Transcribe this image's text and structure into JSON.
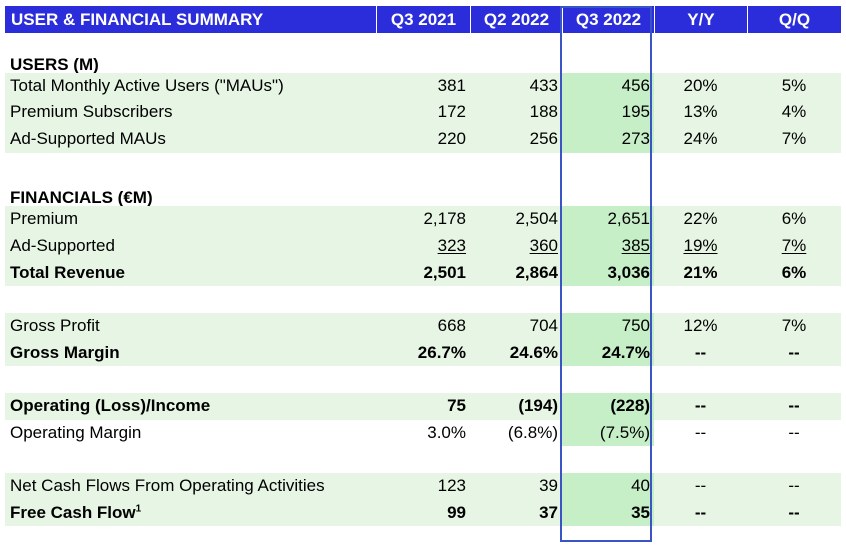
{
  "header": {
    "title": "USER & FINANCIAL SUMMARY",
    "columns": [
      "Q3 2021",
      "Q2 2022",
      "Q3 2022",
      "Y/Y",
      "Q/Q"
    ]
  },
  "sections": {
    "users_title": "USERS (M)",
    "financials_title": "FINANCIALS (€M)"
  },
  "rows": {
    "mau": {
      "label": "Total Monthly Active Users (\"MAUs\")",
      "v": [
        "381",
        "433",
        "456",
        "20%",
        "5%"
      ]
    },
    "premium_subs": {
      "label": "Premium Subscribers",
      "v": [
        "172",
        "188",
        "195",
        "13%",
        "4%"
      ]
    },
    "ad_maus": {
      "label": "Ad-Supported MAUs",
      "v": [
        "220",
        "256",
        "273",
        "24%",
        "7%"
      ]
    },
    "premium": {
      "label": "Premium",
      "v": [
        "2,178",
        "2,504",
        "2,651",
        "22%",
        "6%"
      ]
    },
    "ad_supported": {
      "label": "Ad-Supported",
      "v": [
        "323",
        "360",
        "385",
        "19%",
        "7%"
      ]
    },
    "total_revenue": {
      "label": "Total Revenue",
      "v": [
        "2,501",
        "2,864",
        "3,036",
        "21%",
        "6%"
      ]
    },
    "gross_profit": {
      "label": "Gross Profit",
      "v": [
        "668",
        "704",
        "750",
        "12%",
        "7%"
      ]
    },
    "gross_margin": {
      "label": "Gross Margin",
      "v": [
        "26.7%",
        "24.6%",
        "24.7%",
        "--",
        "--"
      ]
    },
    "op_income": {
      "label": "Operating (Loss)/Income",
      "v": [
        "75",
        "(194)",
        "(228)",
        "--",
        "--"
      ]
    },
    "op_margin": {
      "label": "Operating Margin",
      "v": [
        "3.0%",
        "(6.8%)",
        "(7.5%)",
        "--",
        "--"
      ]
    },
    "net_cash": {
      "label": "Net Cash Flows From Operating Activities",
      "v": [
        "123",
        "39",
        "40",
        "--",
        "--"
      ]
    },
    "fcf": {
      "label": "Free Cash Flow",
      "sup": "1",
      "v": [
        "99",
        "37",
        "35",
        "--",
        "--"
      ]
    }
  },
  "colors": {
    "header_bg": "#2b2ddb",
    "row_tint": "#e7f6e4",
    "highlight": "#c6efc8",
    "highlight_border": "#3a53c5"
  }
}
